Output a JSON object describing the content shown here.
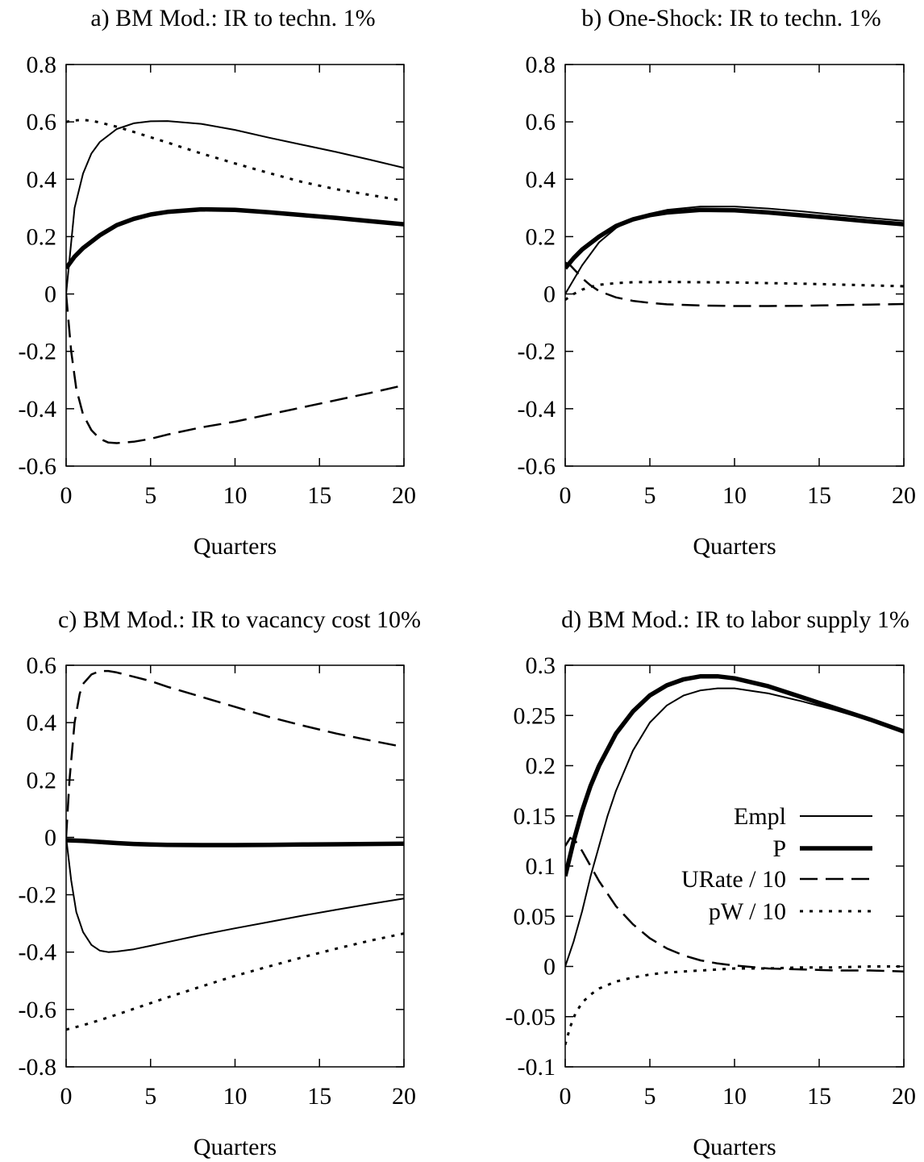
{
  "chart_data": [
    {
      "type": "line",
      "title": "a) BM Mod.: IR to techn. 1%",
      "xlabel": "Quarters",
      "ylabel": "",
      "xlim": [
        0,
        20
      ],
      "ylim": [
        -0.6,
        0.8
      ],
      "xticks": [
        "0",
        "5",
        "10",
        "15",
        "20"
      ],
      "yticks": [
        "-0.6",
        "-0.4",
        "-0.2",
        "0",
        "0.2",
        "0.4",
        "0.6",
        "0.8"
      ],
      "grid": false,
      "legend": false,
      "series": [
        {
          "style": "solid-thin",
          "x": [
            0,
            0.5,
            1,
            1.5,
            2,
            3,
            4,
            5,
            6,
            8,
            10,
            12,
            14,
            16,
            18,
            20
          ],
          "y": [
            0.0,
            0.3,
            0.42,
            0.49,
            0.53,
            0.575,
            0.595,
            0.602,
            0.603,
            0.593,
            0.572,
            0.545,
            0.52,
            0.495,
            0.468,
            0.44
          ]
        },
        {
          "style": "solid-thick",
          "x": [
            0,
            0.5,
            1,
            2,
            3,
            4,
            5,
            6,
            8,
            10,
            12,
            14,
            16,
            18,
            20
          ],
          "y": [
            0.09,
            0.13,
            0.16,
            0.205,
            0.24,
            0.262,
            0.277,
            0.286,
            0.295,
            0.293,
            0.285,
            0.275,
            0.265,
            0.254,
            0.243
          ]
        },
        {
          "style": "dashed",
          "x": [
            0,
            0.3,
            0.6,
            1,
            1.5,
            2,
            2.5,
            3,
            4,
            5,
            6,
            8,
            10,
            12,
            14,
            16,
            18,
            20
          ],
          "y": [
            0.0,
            -0.2,
            -0.33,
            -0.42,
            -0.475,
            -0.505,
            -0.518,
            -0.52,
            -0.515,
            -0.505,
            -0.49,
            -0.465,
            -0.445,
            -0.42,
            -0.395,
            -0.37,
            -0.345,
            -0.318
          ]
        },
        {
          "style": "dotted",
          "x": [
            0,
            0.5,
            1,
            1.5,
            2,
            3,
            4,
            6,
            8,
            10,
            12,
            14,
            16,
            18,
            20
          ],
          "y": [
            0.6,
            0.605,
            0.607,
            0.604,
            0.598,
            0.583,
            0.565,
            0.528,
            0.49,
            0.455,
            0.422,
            0.39,
            0.365,
            0.345,
            0.325
          ]
        }
      ]
    },
    {
      "type": "line",
      "title": "b) One-Shock: IR to techn. 1%",
      "xlabel": "Quarters",
      "ylabel": "",
      "xlim": [
        0,
        20
      ],
      "ylim": [
        -0.6,
        0.8
      ],
      "xticks": [
        "0",
        "5",
        "10",
        "15",
        "20"
      ],
      "yticks": [
        "-0.6",
        "-0.4",
        "-0.2",
        "0",
        "0.2",
        "0.4",
        "0.6",
        "0.8"
      ],
      "grid": false,
      "legend": false,
      "series": [
        {
          "style": "solid-thin",
          "x": [
            0,
            0.5,
            1,
            2,
            3,
            4,
            5,
            6,
            8,
            10,
            12,
            14,
            16,
            18,
            20
          ],
          "y": [
            0.0,
            0.05,
            0.1,
            0.18,
            0.23,
            0.262,
            0.28,
            0.293,
            0.305,
            0.305,
            0.298,
            0.288,
            0.276,
            0.265,
            0.255
          ]
        },
        {
          "style": "solid-thick",
          "x": [
            0,
            0.5,
            1,
            2,
            3,
            4,
            5,
            6,
            8,
            10,
            12,
            14,
            16,
            18,
            20
          ],
          "y": [
            0.09,
            0.125,
            0.155,
            0.2,
            0.237,
            0.26,
            0.275,
            0.284,
            0.293,
            0.292,
            0.284,
            0.274,
            0.264,
            0.253,
            0.243
          ]
        },
        {
          "style": "dashed",
          "x": [
            0,
            0.3,
            0.7,
            1,
            1.5,
            2,
            3,
            4,
            5,
            6,
            8,
            10,
            12,
            14,
            16,
            18,
            20
          ],
          "y": [
            0.11,
            0.1,
            0.075,
            0.055,
            0.03,
            0.01,
            -0.012,
            -0.024,
            -0.031,
            -0.036,
            -0.04,
            -0.042,
            -0.042,
            -0.041,
            -0.039,
            -0.037,
            -0.035
          ]
        },
        {
          "style": "dotted",
          "x": [
            0,
            0.5,
            1,
            1.5,
            2,
            3,
            4,
            6,
            8,
            10,
            12,
            14,
            16,
            18,
            20
          ],
          "y": [
            -0.02,
            0.0,
            0.015,
            0.025,
            0.032,
            0.038,
            0.041,
            0.042,
            0.041,
            0.04,
            0.038,
            0.036,
            0.033,
            0.03,
            0.027
          ]
        }
      ]
    },
    {
      "type": "line",
      "title": "c) BM Mod.: IR to vacancy cost 10%",
      "xlabel": "Quarters",
      "ylabel": "",
      "xlim": [
        0,
        20
      ],
      "ylim": [
        -0.8,
        0.6
      ],
      "xticks": [
        "0",
        "5",
        "10",
        "15",
        "20"
      ],
      "yticks": [
        "-0.8",
        "-0.6",
        "-0.4",
        "-0.2",
        "0",
        "0.2",
        "0.4",
        "0.6"
      ],
      "grid": false,
      "legend": false,
      "series": [
        {
          "style": "solid-thin",
          "x": [
            0,
            0.3,
            0.6,
            1,
            1.5,
            2,
            2.5,
            3,
            4,
            5,
            6,
            8,
            10,
            12,
            14,
            16,
            18,
            20
          ],
          "y": [
            0.0,
            -0.15,
            -0.26,
            -0.33,
            -0.375,
            -0.395,
            -0.4,
            -0.398,
            -0.39,
            -0.378,
            -0.365,
            -0.34,
            -0.317,
            -0.295,
            -0.273,
            -0.252,
            -0.232,
            -0.213
          ]
        },
        {
          "style": "solid-thick",
          "x": [
            0,
            1,
            2,
            3,
            4,
            5,
            6,
            8,
            10,
            12,
            14,
            16,
            18,
            20
          ],
          "y": [
            -0.01,
            -0.012,
            -0.016,
            -0.02,
            -0.023,
            -0.025,
            -0.026,
            -0.027,
            -0.027,
            -0.026,
            -0.025,
            -0.024,
            -0.023,
            -0.022
          ]
        },
        {
          "style": "dashed",
          "x": [
            0,
            0.2,
            0.5,
            0.8,
            1,
            1.5,
            2,
            2.5,
            3,
            4,
            5,
            6,
            8,
            10,
            12,
            14,
            16,
            18,
            20
          ],
          "y": [
            0.0,
            0.2,
            0.4,
            0.5,
            0.535,
            0.568,
            0.58,
            0.58,
            0.575,
            0.56,
            0.545,
            0.525,
            0.49,
            0.455,
            0.42,
            0.39,
            0.362,
            0.338,
            0.315
          ]
        },
        {
          "style": "dotted",
          "x": [
            0,
            1,
            2,
            3,
            4,
            6,
            8,
            10,
            12,
            14,
            16,
            18,
            20
          ],
          "y": [
            -0.67,
            -0.655,
            -0.637,
            -0.618,
            -0.598,
            -0.558,
            -0.52,
            -0.483,
            -0.45,
            -0.418,
            -0.388,
            -0.36,
            -0.335
          ]
        }
      ]
    },
    {
      "type": "line",
      "title": "d) BM Mod.: IR to labor supply 1%",
      "xlabel": "Quarters",
      "ylabel": "",
      "xlim": [
        0,
        20
      ],
      "ylim": [
        -0.1,
        0.3
      ],
      "xticks": [
        "0",
        "5",
        "10",
        "15",
        "20"
      ],
      "yticks": [
        "-0.1",
        "-0.05",
        "0",
        "0.05",
        "0.1",
        "0.15",
        "0.2",
        "0.25",
        "0.3"
      ],
      "grid": false,
      "legend": true,
      "legend_position": "center-right",
      "series": [
        {
          "name": "Empl",
          "style": "solid-thin",
          "x": [
            0,
            0.5,
            1,
            1.5,
            2,
            2.5,
            3,
            4,
            5,
            6,
            7,
            8,
            9,
            10,
            12,
            14,
            16,
            18,
            20
          ],
          "y": [
            0.0,
            0.025,
            0.055,
            0.09,
            0.12,
            0.15,
            0.175,
            0.215,
            0.243,
            0.26,
            0.27,
            0.275,
            0.277,
            0.277,
            0.272,
            0.264,
            0.255,
            0.245,
            0.235
          ]
        },
        {
          "name": "P",
          "style": "solid-thick",
          "x": [
            0,
            0.5,
            1,
            1.5,
            2,
            3,
            4,
            5,
            6,
            7,
            8,
            9,
            10,
            12,
            14,
            16,
            18,
            20
          ],
          "y": [
            0.09,
            0.125,
            0.155,
            0.18,
            0.2,
            0.232,
            0.254,
            0.27,
            0.28,
            0.286,
            0.289,
            0.289,
            0.287,
            0.279,
            0.268,
            0.257,
            0.246,
            0.234
          ]
        },
        {
          "name": "URate / 10",
          "style": "dashed",
          "x": [
            0,
            0.3,
            0.6,
            1,
            1.5,
            2,
            3,
            4,
            5,
            6,
            7,
            8,
            9,
            10,
            12,
            14,
            16,
            18,
            20
          ],
          "y": [
            0.12,
            0.128,
            0.125,
            0.115,
            0.1,
            0.085,
            0.06,
            0.042,
            0.028,
            0.018,
            0.011,
            0.006,
            0.003,
            0.001,
            -0.002,
            -0.003,
            -0.004,
            -0.004,
            -0.005
          ]
        },
        {
          "name": "pW / 10",
          "style": "dotted",
          "x": [
            0,
            0.3,
            0.6,
            1,
            1.5,
            2,
            3,
            4,
            5,
            6,
            8,
            10,
            12,
            14,
            16,
            18,
            20
          ],
          "y": [
            -0.078,
            -0.06,
            -0.047,
            -0.036,
            -0.028,
            -0.022,
            -0.015,
            -0.011,
            -0.008,
            -0.006,
            -0.004,
            -0.002,
            -0.002,
            -0.001,
            -0.001,
            0.0,
            0.0
          ]
        }
      ]
    }
  ]
}
